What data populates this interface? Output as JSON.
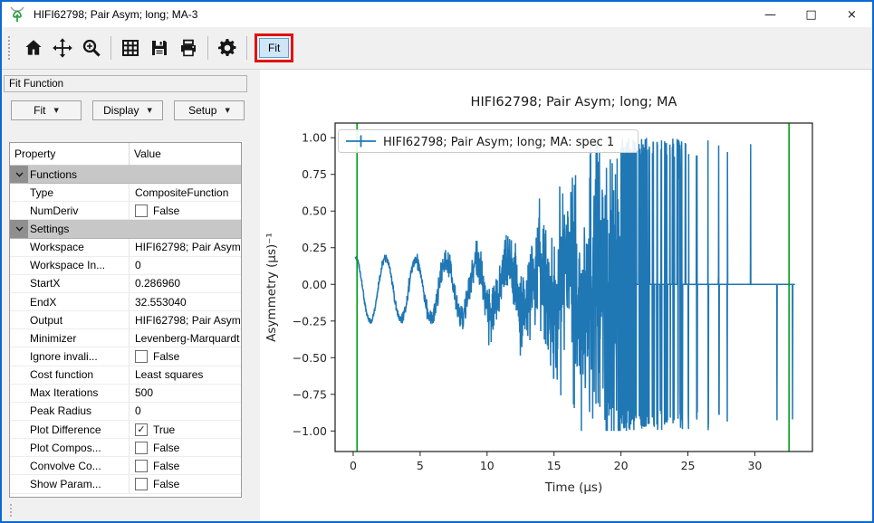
{
  "window": {
    "title": "HIFI62798; Pair Asym; long; MA-3",
    "app_icon": "mantid-logo-icon",
    "controls": [
      {
        "name": "minimize-button",
        "glyph": "—"
      },
      {
        "name": "maximize-button",
        "glyph": "□"
      },
      {
        "name": "close-button",
        "glyph": "×"
      }
    ]
  },
  "toolbar": {
    "icons": [
      "home-icon",
      "pan-icon",
      "zoom-icon",
      "grid-icon",
      "save-icon",
      "print-icon",
      "gear-icon"
    ],
    "separators_after": [
      "zoom-icon",
      "print-icon",
      "gear-icon"
    ],
    "fit_label": "Fit",
    "fit_highlight_color": "#df1310"
  },
  "panel": {
    "title": "Fit Function",
    "menus": [
      {
        "label": "Fit"
      },
      {
        "label": "Display"
      },
      {
        "label": "Setup"
      }
    ],
    "table": {
      "columns": [
        "Property",
        "Value"
      ],
      "rows": [
        {
          "kind": "group",
          "label": "Functions"
        },
        {
          "kind": "text",
          "label": "Type",
          "value": "CompositeFunction"
        },
        {
          "kind": "check",
          "label": "NumDeriv",
          "checked": false,
          "value": "False"
        },
        {
          "kind": "group",
          "label": "Settings"
        },
        {
          "kind": "text",
          "label": "Workspace",
          "value": "HIFI62798; Pair Asym..."
        },
        {
          "kind": "text",
          "label": "Workspace In...",
          "value": "0"
        },
        {
          "kind": "text",
          "label": "StartX",
          "value": "0.286960"
        },
        {
          "kind": "text",
          "label": "EndX",
          "value": "32.553040"
        },
        {
          "kind": "text",
          "label": "Output",
          "value": "HIFI62798; Pair Asym..."
        },
        {
          "kind": "text",
          "label": "Minimizer",
          "value": "Levenberg-Marquardt"
        },
        {
          "kind": "check",
          "label": "Ignore invali...",
          "checked": false,
          "value": "False"
        },
        {
          "kind": "text",
          "label": "Cost function",
          "value": "Least squares"
        },
        {
          "kind": "text",
          "label": "Max Iterations",
          "value": "500"
        },
        {
          "kind": "text",
          "label": "Peak Radius",
          "value": "0"
        },
        {
          "kind": "check",
          "label": "Plot Difference",
          "checked": true,
          "value": "True"
        },
        {
          "kind": "check",
          "label": "Plot Compos...",
          "checked": false,
          "value": "False"
        },
        {
          "kind": "check",
          "label": "Convolve Co...",
          "checked": false,
          "value": "False"
        },
        {
          "kind": "check",
          "label": "Show Param...",
          "checked": false,
          "value": "False"
        }
      ]
    }
  },
  "chart_data": {
    "type": "line",
    "title": "HIFI62798; Pair Asym; long; MA",
    "xlabel": "Time (μs)",
    "ylabel": "Asymmetry (μs)⁻¹",
    "legend_position": "upper left",
    "grid": false,
    "xlim": [
      -1.35,
      34.3
    ],
    "ylim": [
      -1.14,
      1.1
    ],
    "xticks": [
      0,
      5,
      10,
      15,
      20,
      25,
      30
    ],
    "xtick_labels": [
      "0",
      "5",
      "10",
      "15",
      "20",
      "25",
      "30"
    ],
    "yticks": [
      1.0,
      0.75,
      0.5,
      0.25,
      0.0,
      -0.25,
      -0.5,
      -0.75,
      -1.0
    ],
    "ytick_labels": [
      "1.00",
      "0.75",
      "0.50",
      "0.25",
      "0.00",
      "−0.25",
      "−0.50",
      "−0.75",
      "−1.00"
    ],
    "fit_range_vlines": {
      "color": "#00a018",
      "x": [
        0.28696,
        32.55304
      ]
    },
    "series": [
      {
        "name": "HIFI62798; Pair Asym; long; MA: spec 1",
        "color": "#1f77b4",
        "description": "Muon pair-asymmetry spectrum: damped oscillation (~0.2 amplitude, period ~2.3 μs) around ~-0.03; statistical noise grows exponentially with time and saturates at ±1 beyond ~20 μs with many zero-count bins pinned at 0.",
        "model": {
          "t_start": 0.164,
          "t_end": 33.0,
          "dt": 0.016,
          "offset": -0.035,
          "amplitude": 0.225,
          "period": 2.27,
          "phase": 0.15,
          "decay": 0.02,
          "noise0": 0.008,
          "noise_tau": 4.4,
          "saturate_t": 20.0,
          "zero_runs_t": 21.5,
          "clip": [
            -1.0,
            1.0
          ]
        }
      }
    ]
  }
}
